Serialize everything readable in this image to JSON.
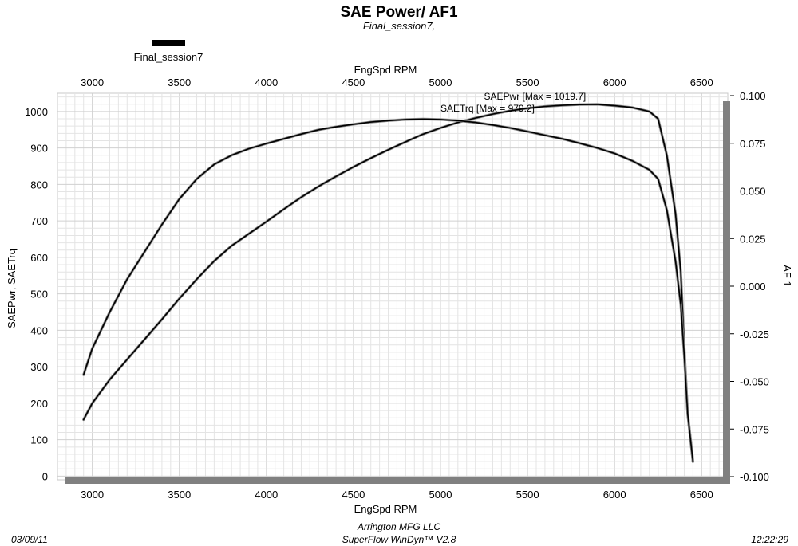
{
  "header": {
    "title": "SAE Power/ AF1",
    "subtitle": "Final_session7,"
  },
  "footer": {
    "date": "03/09/11",
    "company": "Arrington MFG LLC",
    "software": "SuperFlow WinDyn™ V2.8",
    "time": "12:22:29"
  },
  "colors": {
    "primary_line": "#000000",
    "highlight_line": "#888888",
    "axis_bar": "#808080",
    "grid": "#d0d0d0"
  },
  "chart_data": {
    "type": "line",
    "legend": {
      "entries": [
        "Final_session7"
      ],
      "placement": "top-left"
    },
    "x_axis": {
      "label": "EngSpd  RPM",
      "range": [
        2800,
        6650
      ],
      "ticks": [
        3000,
        3500,
        4000,
        4500,
        5000,
        5500,
        6000,
        6500
      ],
      "shown": "top-and-bottom"
    },
    "y_axis_left": {
      "label": "SAEPwr, SAETrq",
      "range": [
        -10,
        1050
      ],
      "ticks": [
        0,
        100,
        200,
        300,
        400,
        500,
        600,
        700,
        800,
        900,
        1000
      ]
    },
    "y_axis_right": {
      "label": "AF 1",
      "range": [
        -0.1,
        0.1
      ],
      "ticks": [
        "0.100",
        "0.075",
        "0.050",
        "0.025",
        "0.000",
        "-0.025",
        "-0.050",
        "-0.075",
        "-0.100"
      ]
    },
    "grid": true,
    "annotations": [
      {
        "text": "SAEPwr [Max = 1019.7]",
        "x": 5250,
        "y": 1033
      },
      {
        "text": "SAETrq [Max = 979.2]",
        "x": 5000,
        "y": 1000
      }
    ],
    "series": [
      {
        "name": "SAEPwr",
        "x": [
          2950,
          3000,
          3100,
          3200,
          3300,
          3400,
          3500,
          3600,
          3700,
          3800,
          3900,
          4000,
          4100,
          4200,
          4300,
          4400,
          4500,
          4600,
          4700,
          4800,
          4900,
          5000,
          5100,
          5200,
          5300,
          5400,
          5500,
          5600,
          5700,
          5800,
          5900,
          6000,
          6100,
          6200,
          6250,
          6300,
          6350,
          6380,
          6400,
          6420,
          6450
        ],
        "y": [
          155,
          200,
          265,
          320,
          375,
          430,
          487,
          540,
          590,
          632,
          665,
          698,
          732,
          765,
          795,
          822,
          848,
          872,
          895,
          917,
          938,
          955,
          970,
          982,
          993,
          1002,
          1009,
          1014,
          1017,
          1019,
          1019.7,
          1016,
          1011,
          1000,
          980,
          880,
          720,
          560,
          350,
          170,
          40
        ]
      },
      {
        "name": "SAETrq",
        "x": [
          2950,
          3000,
          3100,
          3200,
          3300,
          3400,
          3500,
          3600,
          3700,
          3800,
          3900,
          4000,
          4100,
          4200,
          4300,
          4400,
          4500,
          4600,
          4700,
          4800,
          4900,
          5000,
          5100,
          5200,
          5300,
          5400,
          5500,
          5600,
          5700,
          5800,
          5900,
          6000,
          6100,
          6200,
          6250,
          6300,
          6350,
          6380,
          6400,
          6420,
          6450
        ],
        "y": [
          278,
          350,
          450,
          540,
          615,
          690,
          760,
          815,
          855,
          880,
          898,
          912,
          925,
          938,
          950,
          958,
          965,
          971,
          975,
          978,
          979.2,
          978,
          975,
          970,
          963,
          955,
          945,
          935,
          925,
          913,
          900,
          885,
          865,
          840,
          815,
          730,
          590,
          470,
          330,
          170,
          40
        ]
      }
    ]
  }
}
